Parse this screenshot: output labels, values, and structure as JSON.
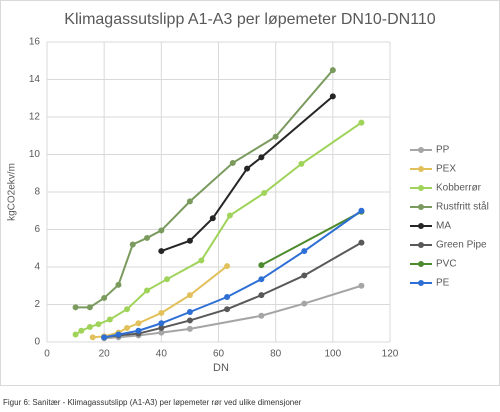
{
  "chart_data": {
    "type": "line",
    "title": "Klimagassutslipp A1-A3 per løpemeter DN10-DN110",
    "x_label": "DN",
    "y_label": "kgCO2ekv/m",
    "caption": "Figur 6: Sanitær - Klimagassutslipp (A1-A3) per løpemeter rør ved ulike dimensjoner",
    "xlim": [
      0,
      120
    ],
    "xticks": [
      0,
      20,
      40,
      60,
      80,
      100,
      120
    ],
    "ylim": [
      0,
      16
    ],
    "yticks": [
      0,
      2,
      4,
      6,
      8,
      10,
      12,
      14,
      16
    ],
    "grid": true,
    "legend": "right",
    "series": [
      {
        "name": "PP",
        "color": "#a5a5a5",
        "x": [
          20,
          25,
          32,
          40,
          50,
          75,
          90,
          110
        ],
        "values": [
          0.2,
          0.25,
          0.35,
          0.5,
          0.7,
          1.4,
          2.05,
          3.0
        ]
      },
      {
        "name": "PEX",
        "color": "#e2c15c",
        "x": [
          16,
          20,
          25,
          28,
          32,
          40,
          50,
          63
        ],
        "values": [
          0.25,
          0.3,
          0.5,
          0.75,
          1.0,
          1.55,
          2.5,
          4.05
        ]
      },
      {
        "name": "Kobberrør",
        "color": "#9fd35a",
        "x": [
          10,
          12,
          15,
          18,
          22,
          28,
          35,
          42,
          54,
          64,
          76,
          89,
          110
        ],
        "values": [
          0.4,
          0.6,
          0.8,
          0.95,
          1.2,
          1.75,
          2.75,
          3.35,
          4.35,
          6.75,
          7.95,
          9.5,
          11.7
        ]
      },
      {
        "name": "Rustfritt stål",
        "color": "#7a9a5e",
        "x": [
          10,
          15,
          20,
          25,
          30,
          35,
          40,
          50,
          65,
          80,
          100
        ],
        "values": [
          1.85,
          1.85,
          2.35,
          3.05,
          5.2,
          5.55,
          5.95,
          7.5,
          9.55,
          10.95,
          14.5
        ]
      },
      {
        "name": "MA",
        "color": "#262626",
        "x": [
          40,
          50,
          58,
          70,
          75,
          100
        ],
        "values": [
          4.85,
          5.4,
          6.6,
          9.25,
          9.85,
          13.1
        ]
      },
      {
        "name": "Green Pipe",
        "color": "#595959",
        "x": [
          20,
          25,
          32,
          40,
          50,
          63,
          75,
          90,
          110
        ],
        "values": [
          0.25,
          0.35,
          0.45,
          0.75,
          1.15,
          1.75,
          2.5,
          3.55,
          5.3
        ]
      },
      {
        "name": "PVC",
        "color": "#4e8a2e",
        "x": [
          75,
          110
        ],
        "values": [
          4.1,
          6.95
        ]
      },
      {
        "name": "PE",
        "color": "#2e6fd6",
        "x": [
          20,
          25,
          32,
          40,
          50,
          63,
          75,
          90,
          110
        ],
        "values": [
          0.25,
          0.4,
          0.6,
          1.0,
          1.6,
          2.4,
          3.35,
          4.85,
          7.0
        ]
      }
    ]
  }
}
